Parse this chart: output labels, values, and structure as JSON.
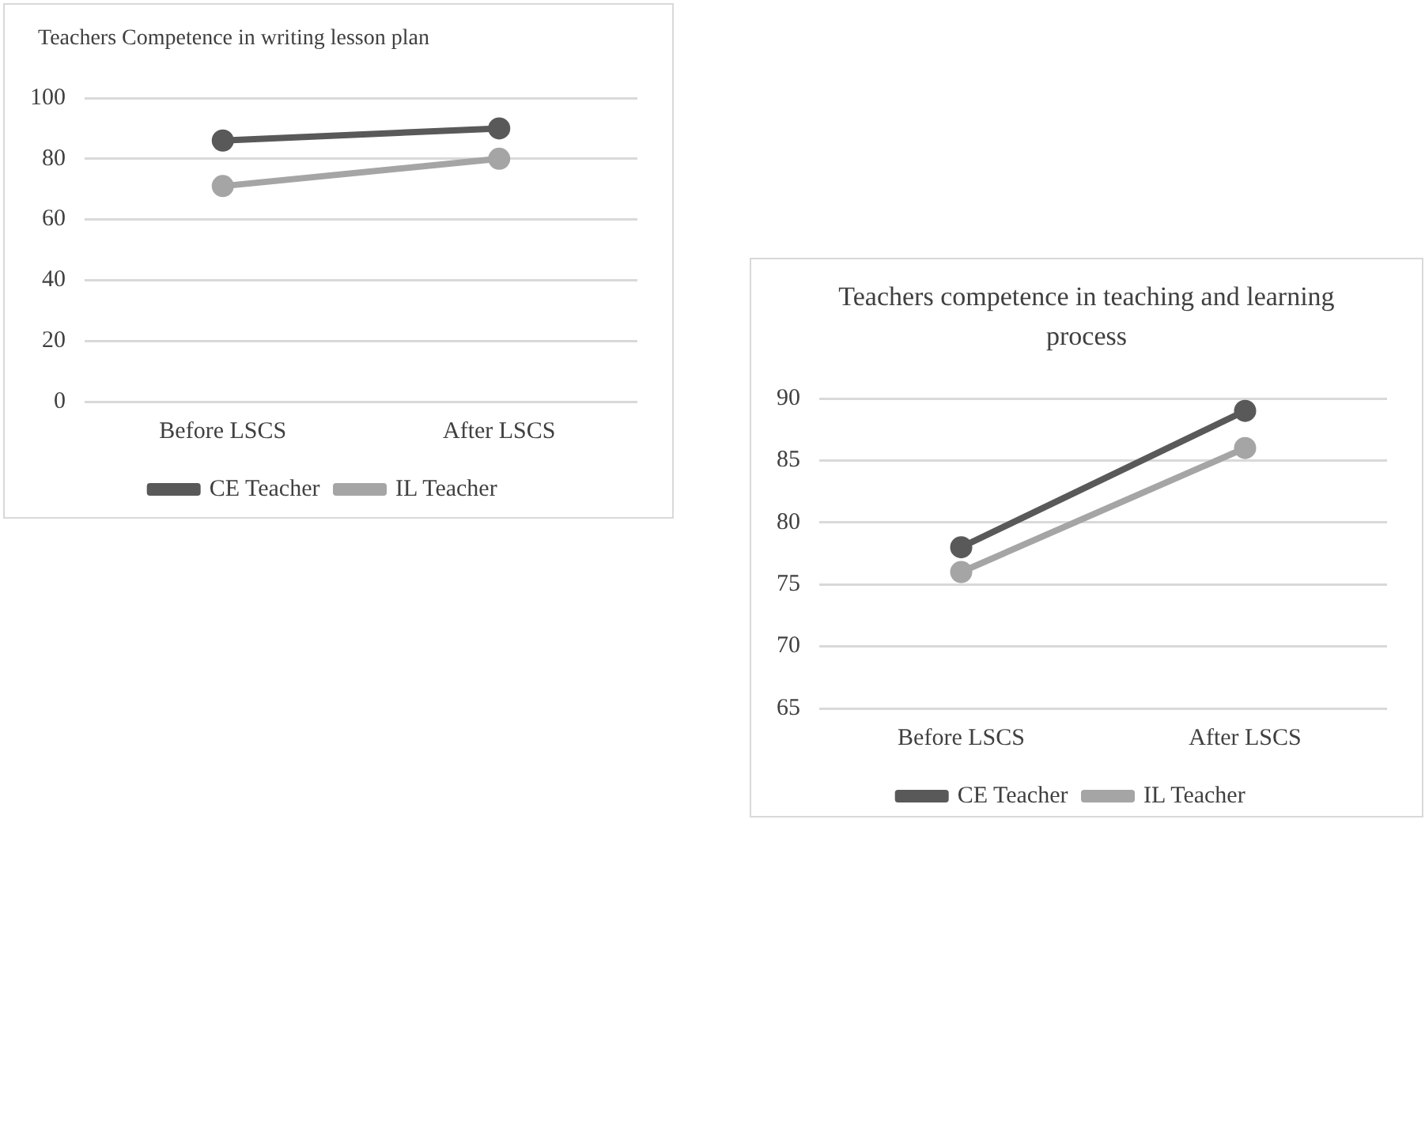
{
  "chart_data": [
    {
      "type": "line",
      "title": "Teachers Competence in writing lesson plan",
      "categories": [
        "Before LSCS",
        "After LSCS"
      ],
      "series": [
        {
          "name": "CE Teacher",
          "color": "#595959",
          "values": [
            86,
            90
          ]
        },
        {
          "name": "IL Teacher",
          "color": "#a5a5a5",
          "values": [
            71,
            80
          ]
        }
      ],
      "ylim": [
        0,
        100
      ],
      "yticks": [
        0,
        20,
        40,
        60,
        80,
        100
      ],
      "grid": "y",
      "legend": "bottom",
      "marker": "circle",
      "line_style": "solid"
    },
    {
      "type": "line",
      "title": "Teachers competence in teaching and learning process",
      "categories": [
        "Before LSCS",
        "After LSCS"
      ],
      "series": [
        {
          "name": "CE Teacher",
          "color": "#595959",
          "values": [
            78,
            89
          ]
        },
        {
          "name": "IL Teacher",
          "color": "#a5a5a5",
          "values": [
            76,
            86
          ]
        }
      ],
      "ylim": [
        65,
        90
      ],
      "yticks": [
        65,
        70,
        75,
        80,
        85,
        90
      ],
      "grid": "y",
      "legend": "bottom",
      "marker": "circle",
      "line_style": "solid"
    }
  ]
}
